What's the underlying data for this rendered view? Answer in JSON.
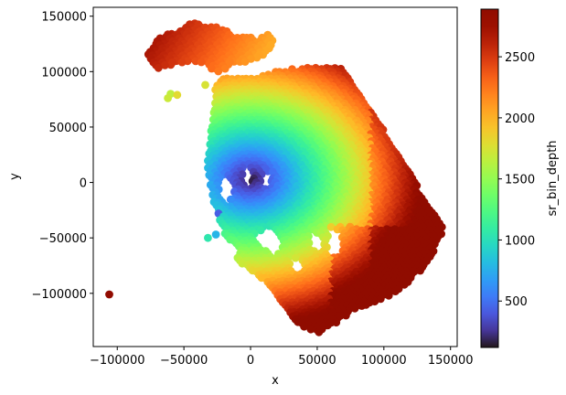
{
  "chart_data": {
    "type": "scatter",
    "xlabel": "x",
    "ylabel": "y",
    "xlim": [
      -118000,
      155000
    ],
    "ylim": [
      -148000,
      158000
    ],
    "xticks": [
      -100000,
      -50000,
      0,
      50000,
      100000,
      150000
    ],
    "xtick_labels": [
      "−100000",
      "−50000",
      "0",
      "50000",
      "100000",
      "150000"
    ],
    "yticks": [
      -100000,
      -50000,
      0,
      50000,
      100000,
      150000
    ],
    "ytick_labels": [
      "−100000",
      "−50000",
      "0",
      "50000",
      "100000",
      "150000"
    ],
    "grid": false,
    "colorbar": {
      "label": "sr_bin_depth",
      "range": [
        120,
        2890
      ],
      "ticks": [
        500,
        1000,
        1500,
        2000,
        2500
      ],
      "tick_labels": [
        "500",
        "1000",
        "1500",
        "2000",
        "2500"
      ],
      "colormap": "turbo"
    },
    "outlier_points": [
      {
        "x": -106000,
        "y": -101000,
        "value": 2850
      },
      {
        "x": -32000,
        "y": -50000,
        "value": 1050
      },
      {
        "x": -26000,
        "y": -47000,
        "value": 780
      },
      {
        "x": -24000,
        "y": -28000,
        "value": 420
      },
      {
        "x": -60000,
        "y": 80000,
        "value": 1650
      },
      {
        "x": -55000,
        "y": 79000,
        "value": 1800
      },
      {
        "x": -34000,
        "y": 88000,
        "value": 1750
      },
      {
        "x": -62000,
        "y": 76000,
        "value": 1700
      }
    ],
    "regions": [
      {
        "name": "main-swath",
        "polygon": [
          [
            -26000,
            88000
          ],
          [
            -20000,
            94000
          ],
          [
            8000,
            96000
          ],
          [
            22000,
            102000
          ],
          [
            52000,
            104000
          ],
          [
            66000,
            106000
          ],
          [
            72000,
            102000
          ],
          [
            146000,
            -44000
          ],
          [
            130000,
            -78000
          ],
          [
            110000,
            -98000
          ],
          [
            95000,
            -108000
          ],
          [
            82000,
            -112000
          ],
          [
            65000,
            -126000
          ],
          [
            50000,
            -136000
          ],
          [
            36000,
            -128000
          ],
          [
            20000,
            -104000
          ],
          [
            10000,
            -88000
          ],
          [
            -10000,
            -70000
          ],
          [
            -22000,
            -40000
          ],
          [
            -30000,
            -8000
          ],
          [
            -34000,
            20000
          ],
          [
            -30000,
            40000
          ],
          [
            -28000,
            68000
          ]
        ],
        "gradient": "radial-depth",
        "center": [
          0,
          2000
        ],
        "min_value": 130,
        "max_value": 2880
      },
      {
        "name": "north-arc",
        "polygon": [
          [
            -77000,
            115000
          ],
          [
            -68000,
            132000
          ],
          [
            -55000,
            138000
          ],
          [
            -44000,
            145000
          ],
          [
            -30000,
            142000
          ],
          [
            -18000,
            138000
          ],
          [
            -8000,
            132000
          ],
          [
            6000,
            130000
          ],
          [
            14000,
            136000
          ],
          [
            18000,
            126000
          ],
          [
            12000,
            116000
          ],
          [
            4000,
            110000
          ],
          [
            -10000,
            108000
          ],
          [
            -24000,
            98000
          ],
          [
            -32000,
            104000
          ],
          [
            -44000,
            110000
          ],
          [
            -56000,
            106000
          ],
          [
            -68000,
            102000
          ],
          [
            -74000,
            108000
          ]
        ],
        "gradient": "arc",
        "min_value": 1900,
        "max_value": 2800
      }
    ],
    "holes": [
      {
        "polygon": [
          [
            12000,
            -38000
          ],
          [
            20000,
            -48000
          ],
          [
            24000,
            -58000
          ],
          [
            18000,
            -66000
          ],
          [
            8000,
            -58000
          ],
          [
            4000,
            -48000
          ]
        ]
      },
      {
        "polygon": [
          [
            44000,
            -44000
          ],
          [
            52000,
            -48000
          ],
          [
            56000,
            -58000
          ],
          [
            50000,
            -64000
          ],
          [
            44000,
            -56000
          ]
        ]
      },
      {
        "polygon": [
          [
            58000,
            -40000
          ],
          [
            68000,
            -44000
          ],
          [
            70000,
            -60000
          ],
          [
            64000,
            -70000
          ],
          [
            58000,
            -60000
          ]
        ]
      },
      {
        "polygon": [
          [
            -22000,
            8000
          ],
          [
            -14000,
            2000
          ],
          [
            -12000,
            -10000
          ],
          [
            -18000,
            -20000
          ],
          [
            -24000,
            -10000
          ]
        ]
      },
      {
        "polygon": [
          [
            -5000,
            14000
          ],
          [
            2000,
            10000
          ],
          [
            0,
            -4000
          ],
          [
            -6000,
            -2000
          ]
        ]
      },
      {
        "polygon": [
          [
            10000,
            14000
          ],
          [
            16000,
            6000
          ],
          [
            14000,
            -6000
          ],
          [
            8000,
            -2000
          ]
        ]
      },
      {
        "polygon": [
          [
            -20000,
            -60000
          ],
          [
            -14000,
            -54000
          ],
          [
            -8000,
            -64000
          ],
          [
            -14000,
            -70000
          ]
        ]
      },
      {
        "polygon": [
          [
            30000,
            -68000
          ],
          [
            38000,
            -70000
          ],
          [
            40000,
            -80000
          ],
          [
            32000,
            -82000
          ]
        ]
      }
    ]
  }
}
